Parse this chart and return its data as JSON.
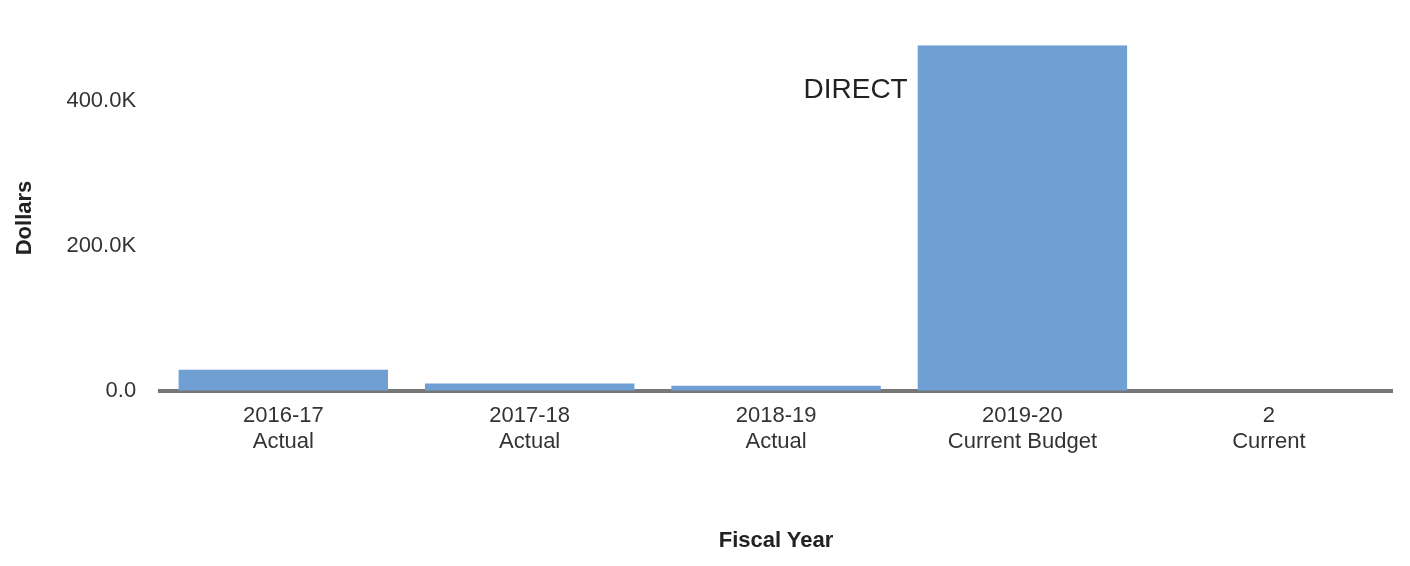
{
  "chart_data": {
    "type": "bar",
    "xlabel": "Fiscal Year",
    "ylabel": "Dollars",
    "categories": [
      "2016-17\nActual",
      "2017-18\nActual",
      "2018-19\nActual",
      "2019-20\nCurrent Budget",
      "2\nCurrent"
    ],
    "values": [
      29000,
      10000,
      7000,
      477000,
      null
    ],
    "color": "#6f9fd3",
    "ylim": [
      0,
      477000
    ],
    "yticks": [
      {
        "value": 0,
        "label": "0.0"
      },
      {
        "value": 200000,
        "label": "200.0K"
      },
      {
        "value": 400000,
        "label": "400.0K"
      }
    ],
    "grid": false,
    "legend": false,
    "annotations": [
      "DIRECT"
    ]
  }
}
